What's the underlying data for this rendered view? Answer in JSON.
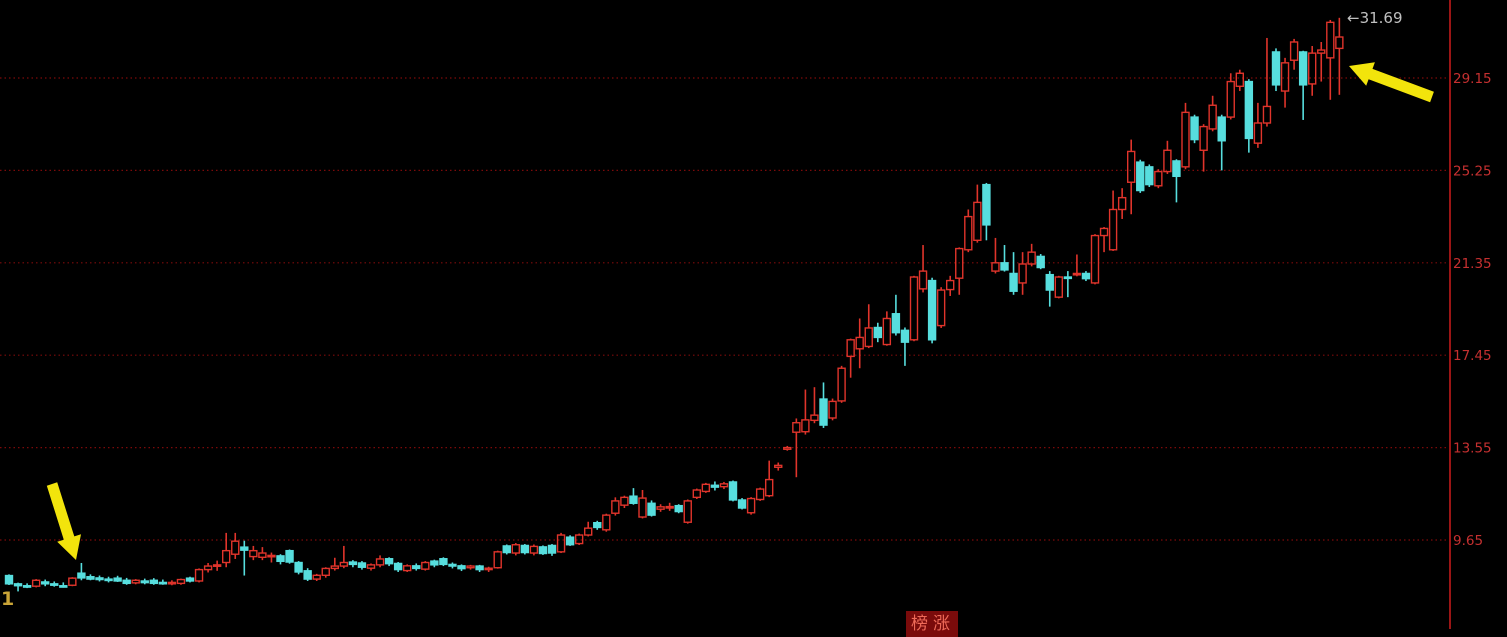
{
  "chart_data": {
    "type": "candlestick",
    "title": "",
    "background": "#000000",
    "grid": true,
    "grid_color": "#7c0a0a",
    "axis_line_color": "#9b1515",
    "up_color": "#e0342b",
    "down_color": "#57dede",
    "label_color": "#c53030",
    "legend_position": "none",
    "y_axis": {
      "side": "right",
      "values": [
        29.15,
        25.25,
        21.35,
        17.45,
        13.55,
        9.65
      ],
      "labels": [
        "29.15",
        "25.25",
        "21.35",
        "17.45",
        "13.55",
        "9.65"
      ],
      "ylim": [
        5.9,
        32.4
      ]
    },
    "candles_format": "[open, high, low, close]",
    "candles": [
      [
        8.15,
        8.2,
        7.75,
        7.8
      ],
      [
        7.8,
        7.85,
        7.48,
        7.72
      ],
      [
        7.72,
        7.82,
        7.62,
        7.7
      ],
      [
        7.7,
        8.0,
        7.65,
        7.95
      ],
      [
        7.88,
        7.98,
        7.7,
        7.8
      ],
      [
        7.8,
        7.9,
        7.68,
        7.76
      ],
      [
        7.72,
        7.86,
        7.64,
        7.7
      ],
      [
        7.74,
        8.08,
        7.7,
        8.04
      ],
      [
        8.25,
        8.68,
        7.95,
        8.05
      ],
      [
        8.1,
        8.2,
        7.95,
        8.0
      ],
      [
        8.05,
        8.15,
        7.9,
        7.98
      ],
      [
        8.0,
        8.1,
        7.86,
        7.95
      ],
      [
        8.04,
        8.14,
        7.88,
        7.92
      ],
      [
        7.95,
        8.05,
        7.76,
        7.82
      ],
      [
        7.84,
        8.0,
        7.78,
        7.95
      ],
      [
        7.92,
        8.02,
        7.78,
        7.85
      ],
      [
        7.95,
        8.04,
        7.76,
        7.82
      ],
      [
        7.86,
        7.98,
        7.76,
        7.84
      ],
      [
        7.8,
        7.95,
        7.74,
        7.86
      ],
      [
        7.82,
        8.02,
        7.76,
        7.98
      ],
      [
        8.04,
        8.1,
        7.86,
        7.92
      ],
      [
        7.92,
        8.45,
        7.86,
        8.4
      ],
      [
        8.4,
        8.68,
        8.28,
        8.55
      ],
      [
        8.55,
        8.78,
        8.35,
        8.6
      ],
      [
        8.7,
        9.95,
        8.5,
        9.2
      ],
      [
        9.05,
        9.95,
        8.85,
        9.6
      ],
      [
        9.35,
        9.62,
        8.15,
        9.22
      ],
      [
        8.95,
        9.4,
        8.8,
        9.2
      ],
      [
        8.92,
        9.35,
        8.8,
        9.1
      ],
      [
        8.95,
        9.12,
        8.7,
        9.0
      ],
      [
        8.98,
        9.05,
        8.62,
        8.75
      ],
      [
        9.2,
        9.25,
        8.65,
        8.72
      ],
      [
        8.7,
        8.76,
        8.2,
        8.3
      ],
      [
        8.35,
        8.46,
        7.92,
        8.0
      ],
      [
        8.0,
        8.22,
        7.92,
        8.16
      ],
      [
        8.16,
        8.5,
        8.06,
        8.45
      ],
      [
        8.45,
        8.9,
        8.36,
        8.55
      ],
      [
        8.55,
        9.4,
        8.46,
        8.7
      ],
      [
        8.72,
        8.8,
        8.5,
        8.62
      ],
      [
        8.68,
        8.76,
        8.4,
        8.5
      ],
      [
        8.46,
        8.66,
        8.36,
        8.6
      ],
      [
        8.6,
        9.0,
        8.5,
        8.85
      ],
      [
        8.86,
        8.92,
        8.55,
        8.65
      ],
      [
        8.66,
        8.72,
        8.3,
        8.4
      ],
      [
        8.36,
        8.62,
        8.3,
        8.56
      ],
      [
        8.56,
        8.66,
        8.36,
        8.45
      ],
      [
        8.42,
        8.76,
        8.36,
        8.7
      ],
      [
        8.76,
        8.82,
        8.5,
        8.6
      ],
      [
        8.86,
        8.92,
        8.55,
        8.62
      ],
      [
        8.62,
        8.7,
        8.45,
        8.55
      ],
      [
        8.56,
        8.62,
        8.34,
        8.44
      ],
      [
        8.48,
        8.6,
        8.4,
        8.55
      ],
      [
        8.55,
        8.6,
        8.3,
        8.4
      ],
      [
        8.4,
        8.52,
        8.3,
        8.46
      ],
      [
        8.48,
        9.2,
        8.44,
        9.15
      ],
      [
        9.4,
        9.46,
        9.04,
        9.12
      ],
      [
        9.1,
        9.52,
        9.0,
        9.45
      ],
      [
        9.42,
        9.48,
        9.04,
        9.12
      ],
      [
        9.1,
        9.46,
        9.0,
        9.38
      ],
      [
        9.36,
        9.42,
        9.02,
        9.08
      ],
      [
        9.42,
        9.48,
        8.98,
        9.1
      ],
      [
        9.15,
        9.95,
        9.1,
        9.86
      ],
      [
        9.77,
        9.85,
        9.4,
        9.45
      ],
      [
        9.5,
        9.92,
        9.44,
        9.86
      ],
      [
        9.86,
        10.42,
        9.8,
        10.15
      ],
      [
        10.38,
        10.46,
        10.08,
        10.18
      ],
      [
        10.08,
        10.76,
        10.0,
        10.7
      ],
      [
        10.78,
        11.45,
        10.68,
        11.3
      ],
      [
        11.12,
        11.52,
        11.0,
        11.45
      ],
      [
        11.5,
        11.84,
        11.14,
        11.2
      ],
      [
        10.62,
        11.76,
        10.56,
        11.42
      ],
      [
        11.2,
        11.32,
        10.64,
        10.7
      ],
      [
        10.95,
        11.16,
        10.84,
        11.05
      ],
      [
        11.0,
        11.22,
        10.88,
        11.06
      ],
      [
        11.1,
        11.16,
        10.78,
        10.85
      ],
      [
        10.4,
        11.36,
        10.34,
        11.3
      ],
      [
        11.45,
        11.82,
        11.38,
        11.76
      ],
      [
        11.7,
        12.06,
        11.64,
        12.0
      ],
      [
        11.96,
        12.12,
        11.74,
        11.88
      ],
      [
        11.9,
        12.1,
        11.8,
        12.02
      ],
      [
        12.1,
        12.16,
        11.28,
        11.34
      ],
      [
        11.34,
        11.42,
        10.94,
        11.0
      ],
      [
        10.8,
        11.46,
        10.72,
        11.4
      ],
      [
        11.36,
        11.86,
        11.3,
        11.8
      ],
      [
        11.52,
        13.0,
        11.46,
        12.2
      ],
      [
        12.72,
        12.92,
        12.58,
        12.8
      ],
      [
        13.48,
        13.62,
        13.42,
        13.55
      ],
      [
        14.2,
        14.78,
        12.3,
        14.6
      ],
      [
        14.22,
        16.0,
        14.1,
        14.72
      ],
      [
        14.7,
        16.1,
        14.58,
        14.92
      ],
      [
        15.6,
        16.3,
        14.38,
        14.5
      ],
      [
        14.8,
        15.62,
        14.7,
        15.5
      ],
      [
        15.52,
        17.0,
        15.44,
        16.9
      ],
      [
        17.4,
        18.15,
        16.5,
        18.1
      ],
      [
        17.72,
        19.0,
        16.9,
        18.2
      ],
      [
        17.82,
        19.6,
        17.75,
        18.6
      ],
      [
        18.62,
        18.82,
        18.0,
        18.2
      ],
      [
        17.9,
        19.3,
        17.85,
        19.0
      ],
      [
        19.2,
        20.0,
        18.28,
        18.4
      ],
      [
        18.5,
        18.62,
        17.0,
        18.0
      ],
      [
        18.1,
        20.8,
        18.04,
        20.75
      ],
      [
        20.25,
        22.1,
        20.1,
        21.0
      ],
      [
        20.6,
        20.72,
        17.95,
        18.1
      ],
      [
        18.7,
        20.32,
        18.6,
        20.2
      ],
      [
        20.22,
        20.8,
        19.95,
        20.6
      ],
      [
        20.7,
        22.0,
        20.0,
        21.95
      ],
      [
        21.9,
        23.6,
        21.8,
        23.3
      ],
      [
        22.3,
        24.65,
        22.2,
        23.9
      ],
      [
        24.65,
        24.72,
        22.3,
        22.95
      ],
      [
        21.0,
        22.4,
        20.9,
        21.35
      ],
      [
        21.35,
        22.1,
        20.98,
        21.05
      ],
      [
        20.9,
        21.8,
        20.0,
        20.15
      ],
      [
        20.5,
        21.8,
        20.0,
        21.3
      ],
      [
        21.3,
        22.15,
        21.2,
        21.8
      ],
      [
        21.62,
        21.72,
        21.08,
        21.15
      ],
      [
        20.85,
        21.0,
        19.5,
        20.2
      ],
      [
        19.9,
        20.8,
        19.85,
        20.75
      ],
      [
        20.75,
        21.0,
        19.9,
        20.7
      ],
      [
        20.85,
        21.7,
        20.78,
        20.9
      ],
      [
        20.9,
        21.0,
        20.58,
        20.68
      ],
      [
        20.5,
        22.56,
        20.44,
        22.5
      ],
      [
        22.5,
        22.86,
        21.8,
        22.8
      ],
      [
        21.9,
        24.4,
        21.85,
        23.6
      ],
      [
        23.6,
        24.5,
        23.2,
        24.1
      ],
      [
        24.75,
        26.55,
        23.4,
        26.05
      ],
      [
        25.6,
        25.7,
        24.3,
        24.4
      ],
      [
        25.4,
        25.5,
        24.55,
        24.65
      ],
      [
        24.6,
        25.3,
        24.5,
        25.2
      ],
      [
        25.2,
        26.5,
        25.1,
        26.1
      ],
      [
        25.65,
        25.72,
        23.9,
        25.0
      ],
      [
        25.4,
        28.1,
        25.3,
        27.7
      ],
      [
        27.5,
        27.6,
        26.4,
        26.55
      ],
      [
        26.1,
        27.2,
        25.2,
        27.1
      ],
      [
        27.0,
        28.4,
        26.9,
        28.0
      ],
      [
        27.5,
        27.6,
        25.25,
        26.5
      ],
      [
        27.5,
        29.35,
        27.4,
        29.0
      ],
      [
        28.8,
        29.5,
        28.6,
        29.35
      ],
      [
        29.0,
        29.1,
        26.0,
        26.6
      ],
      [
        26.4,
        28.1,
        26.2,
        27.25
      ],
      [
        27.25,
        30.84,
        27.1,
        27.95
      ],
      [
        30.25,
        30.4,
        28.6,
        28.86
      ],
      [
        28.6,
        30.0,
        27.9,
        29.79
      ],
      [
        29.9,
        30.8,
        29.5,
        30.67
      ],
      [
        30.25,
        30.3,
        27.38,
        28.86
      ],
      [
        28.9,
        30.5,
        28.4,
        30.2
      ],
      [
        30.2,
        30.67,
        29.0,
        30.33
      ],
      [
        30.0,
        31.6,
        28.23,
        31.5
      ],
      [
        30.4,
        31.69,
        28.44,
        30.88
      ]
    ]
  },
  "annotations": {
    "price_tag": {
      "value": 31.69,
      "display": "←31.69",
      "color": "#c0c0c0"
    },
    "arrows": [
      {
        "name": "bottom-left-arrow",
        "color": "#f2e40c",
        "tail": [
          52,
          484
        ],
        "tip": [
          76,
          560
        ]
      },
      {
        "name": "top-right-arrow",
        "color": "#f2e40c",
        "tail": [
          1432,
          97
        ],
        "tip": [
          1349,
          66
        ]
      }
    ],
    "badge": {
      "text": "榜涨",
      "bg": "#7a0b0b",
      "color": "#ee6a58"
    },
    "x_label": {
      "text": "1",
      "color": "#c9a437"
    }
  }
}
